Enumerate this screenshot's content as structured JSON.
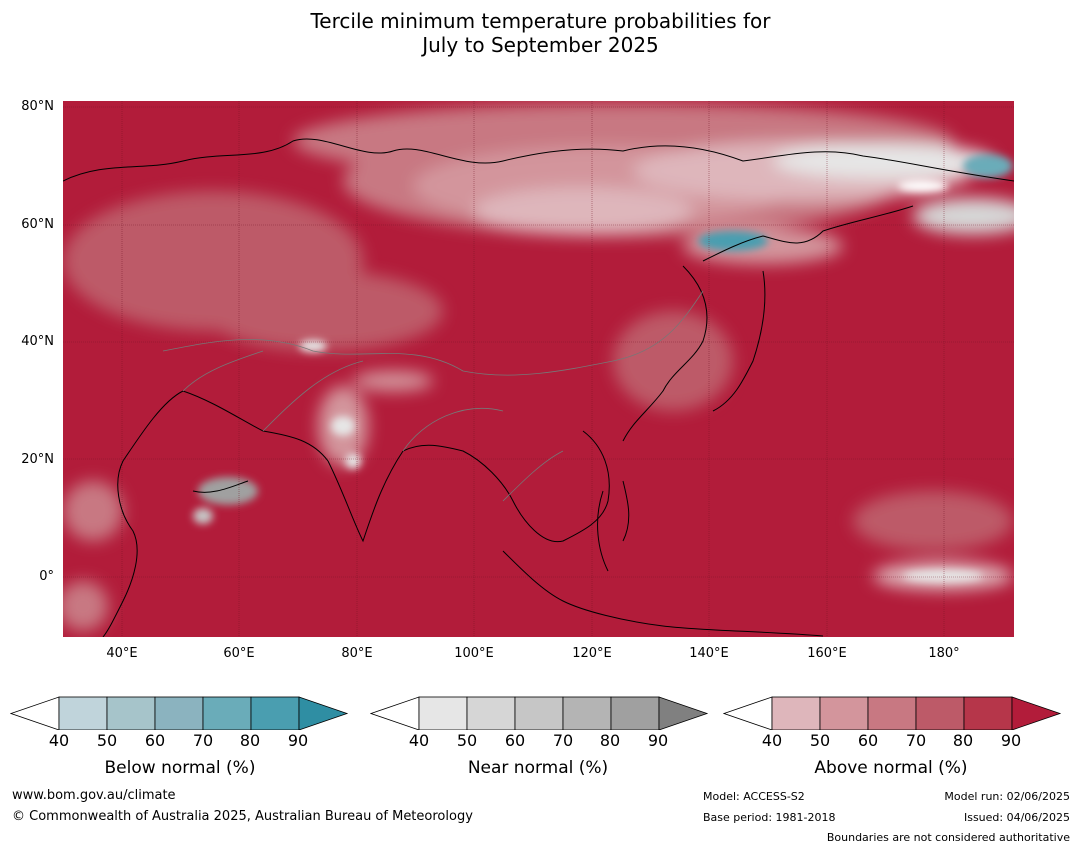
{
  "title": {
    "line1": "Tercile minimum temperature probabilities for",
    "line2": "July to September 2025"
  },
  "map": {
    "lat_labels": [
      "80°N",
      "60°N",
      "40°N",
      "20°N",
      "0°"
    ],
    "lon_labels": [
      "40°E",
      "60°E",
      "80°E",
      "100°E",
      "120°E",
      "140°E",
      "160°E",
      "180°"
    ],
    "lat_range": [
      -10,
      81
    ],
    "lon_range": [
      30,
      192
    ],
    "dominant_category": "Above normal",
    "dominant_probability_percent": 90
  },
  "legends": [
    {
      "title": "Below normal (%)",
      "ticks": [
        "40",
        "50",
        "60",
        "70",
        "80",
        "90"
      ],
      "colors": [
        "#c0d4db",
        "#a6c4ca",
        "#8bb3bf",
        "#6aacb9",
        "#4a9eb0",
        "#2f8ea3"
      ]
    },
    {
      "title": "Near normal (%)",
      "ticks": [
        "40",
        "50",
        "60",
        "70",
        "80",
        "90"
      ],
      "colors": [
        "#e6e6e6",
        "#d6d6d6",
        "#c6c6c6",
        "#b4b4b4",
        "#a0a0a0",
        "#808080"
      ]
    },
    {
      "title": "Above normal (%)",
      "ticks": [
        "40",
        "50",
        "60",
        "70",
        "80",
        "90"
      ],
      "colors": [
        "#deb6bb",
        "#d3959c",
        "#c87882",
        "#bd5a68",
        "#b6364a",
        "#b21c3a"
      ]
    }
  ],
  "footer": {
    "website": "www.bom.gov.au/climate",
    "copyright": "© Commonwealth of Australia 2025, Australian Bureau of Meteorology",
    "model": "Model: ACCESS-S2",
    "base_period": "Base period: 1981-2018",
    "model_run": "Model run: 02/06/2025",
    "issued": "Issued: 04/06/2025",
    "disclaimer": "Boundaries are not considered authoritative"
  }
}
